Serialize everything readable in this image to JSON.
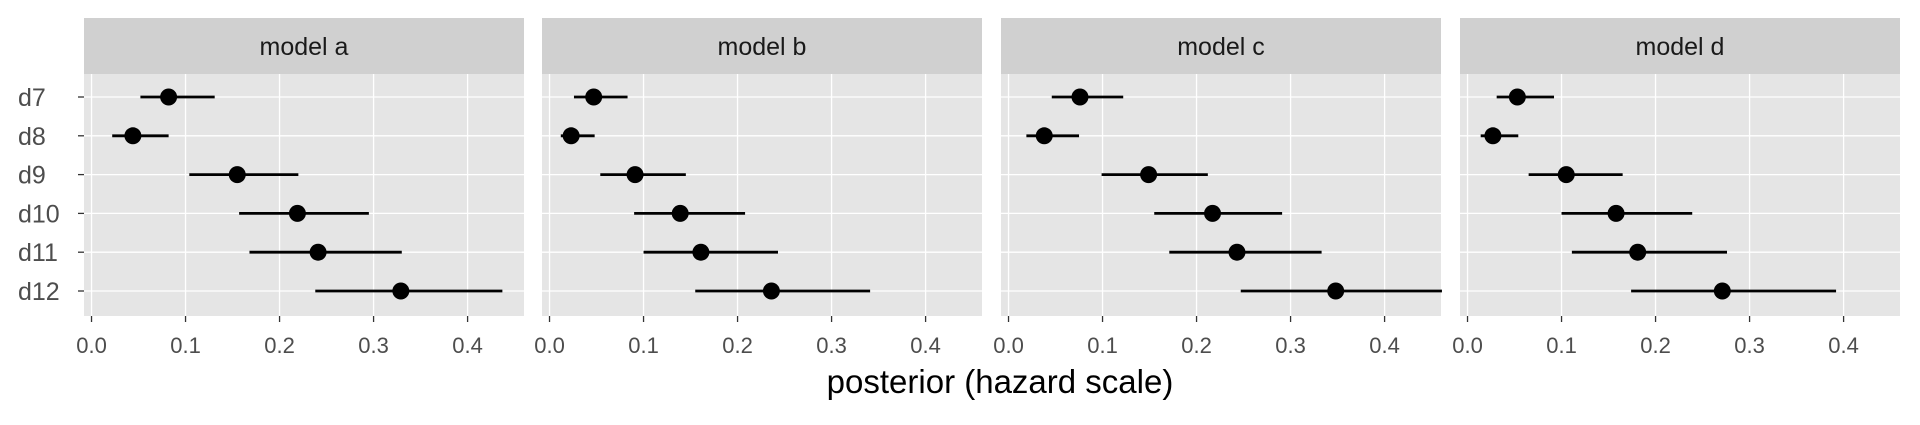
{
  "chart_data": {
    "type": "scatter",
    "subtype": "faceted point-range (dot and interval)",
    "xlabel": "posterior (hazard scale)",
    "ylabel": "",
    "xlim": [
      -0.008,
      0.46
    ],
    "x_ticks": [
      0.0,
      0.1,
      0.2,
      0.3,
      0.4
    ],
    "x_tick_labels": [
      "0.0",
      "0.1",
      "0.2",
      "0.3",
      "0.4"
    ],
    "categories": [
      "d7",
      "d8",
      "d9",
      "d10",
      "d11",
      "d12"
    ],
    "grid": true,
    "legend": "none",
    "colors": {
      "panel_background": "#e5e5e5",
      "strip_background": "#d0d0d0",
      "grid_major": "#ffffff",
      "point": "#000000",
      "interval": "#000000"
    },
    "panels": [
      {
        "title": "model a",
        "points": [
          {
            "category": "d7",
            "estimate": 0.082,
            "lower": 0.052,
            "upper": 0.131
          },
          {
            "category": "d8",
            "estimate": 0.044,
            "lower": 0.022,
            "upper": 0.082
          },
          {
            "category": "d9",
            "estimate": 0.155,
            "lower": 0.104,
            "upper": 0.22
          },
          {
            "category": "d10",
            "estimate": 0.219,
            "lower": 0.157,
            "upper": 0.295
          },
          {
            "category": "d11",
            "estimate": 0.241,
            "lower": 0.168,
            "upper": 0.33
          },
          {
            "category": "d12",
            "estimate": 0.329,
            "lower": 0.238,
            "upper": 0.437
          }
        ]
      },
      {
        "title": "model b",
        "points": [
          {
            "category": "d7",
            "estimate": 0.047,
            "lower": 0.026,
            "upper": 0.083
          },
          {
            "category": "d8",
            "estimate": 0.023,
            "lower": 0.012,
            "upper": 0.048
          },
          {
            "category": "d9",
            "estimate": 0.091,
            "lower": 0.054,
            "upper": 0.145
          },
          {
            "category": "d10",
            "estimate": 0.139,
            "lower": 0.09,
            "upper": 0.208
          },
          {
            "category": "d11",
            "estimate": 0.161,
            "lower": 0.1,
            "upper": 0.243
          },
          {
            "category": "d12",
            "estimate": 0.236,
            "lower": 0.155,
            "upper": 0.341
          }
        ]
      },
      {
        "title": "model c",
        "points": [
          {
            "category": "d7",
            "estimate": 0.076,
            "lower": 0.046,
            "upper": 0.122
          },
          {
            "category": "d8",
            "estimate": 0.038,
            "lower": 0.019,
            "upper": 0.075
          },
          {
            "category": "d9",
            "estimate": 0.149,
            "lower": 0.099,
            "upper": 0.212
          },
          {
            "category": "d10",
            "estimate": 0.217,
            "lower": 0.155,
            "upper": 0.291
          },
          {
            "category": "d11",
            "estimate": 0.243,
            "lower": 0.171,
            "upper": 0.333
          },
          {
            "category": "d12",
            "estimate": 0.348,
            "lower": 0.247,
            "upper": 0.461
          }
        ]
      },
      {
        "title": "model d",
        "points": [
          {
            "category": "d7",
            "estimate": 0.053,
            "lower": 0.031,
            "upper": 0.092
          },
          {
            "category": "d8",
            "estimate": 0.027,
            "lower": 0.014,
            "upper": 0.054
          },
          {
            "category": "d9",
            "estimate": 0.105,
            "lower": 0.065,
            "upper": 0.165
          },
          {
            "category": "d10",
            "estimate": 0.158,
            "lower": 0.1,
            "upper": 0.239
          },
          {
            "category": "d11",
            "estimate": 0.181,
            "lower": 0.111,
            "upper": 0.276
          },
          {
            "category": "d12",
            "estimate": 0.271,
            "lower": 0.174,
            "upper": 0.392
          }
        ]
      }
    ]
  }
}
